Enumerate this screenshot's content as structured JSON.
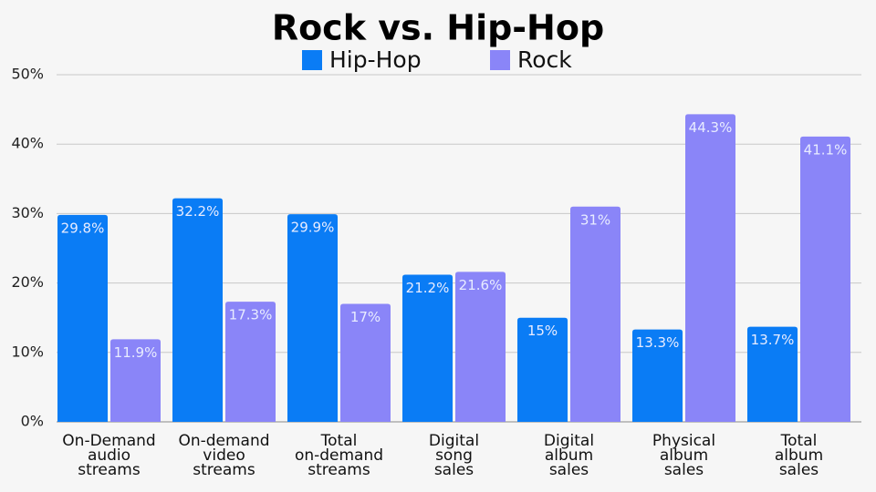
{
  "chart_data": {
    "type": "bar",
    "title": "Rock vs. Hip-Hop",
    "categories": [
      "On-Demand audio streams",
      "On-demand video streams",
      "Total on-demand streams",
      "Digital song sales",
      "Digital album sales",
      "Physical album sales",
      "Total album sales"
    ],
    "series": [
      {
        "name": "Hip-Hop",
        "color": "#0a7cf5",
        "values": [
          29.8,
          32.2,
          29.9,
          21.2,
          15,
          13.3,
          13.7
        ],
        "value_labels": [
          "29.8%",
          "32.2%",
          "29.9%",
          "21.2%",
          "15%",
          "13.3%",
          "13.7%"
        ]
      },
      {
        "name": "Rock",
        "color": "#8a85f8",
        "values": [
          11.9,
          17.3,
          17,
          21.6,
          31,
          44.3,
          41.1
        ],
        "value_labels": [
          "11.9%",
          "17.3%",
          "17%",
          "21.6%",
          "31%",
          "44.3%",
          "41.1%"
        ]
      }
    ],
    "ylim": [
      0,
      50
    ],
    "yticks": [
      {
        "value": 0,
        "label": "0%"
      },
      {
        "value": 10,
        "label": "10%"
      },
      {
        "value": 20,
        "label": "20%"
      },
      {
        "value": 30,
        "label": "30%"
      },
      {
        "value": 40,
        "label": "40%"
      },
      {
        "value": 50,
        "label": "50%"
      }
    ],
    "grid": true
  }
}
